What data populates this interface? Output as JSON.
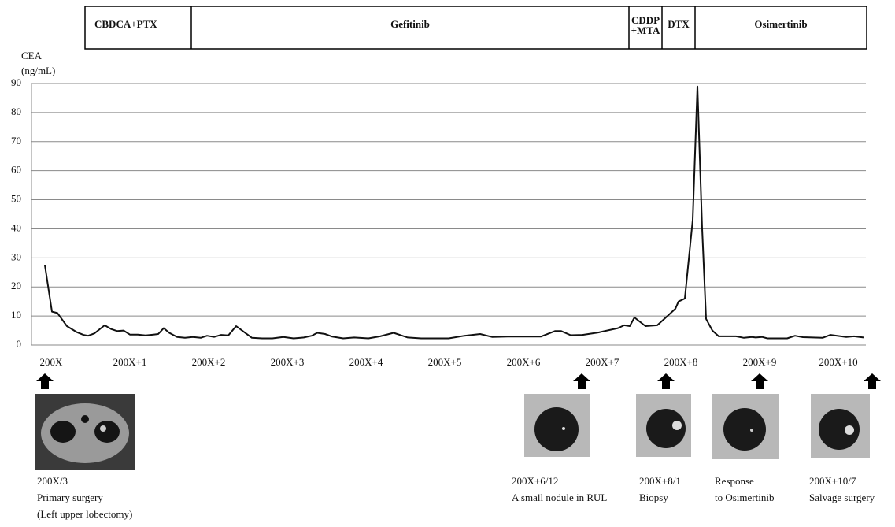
{
  "chart_data": {
    "type": "line",
    "treatments": [
      [
        "CBDCA+PTX"
      ],
      [
        "Gefitinib"
      ],
      [
        "CDDP",
        "+MTA"
      ],
      [
        "DTX"
      ],
      [
        "Osimertinib"
      ]
    ],
    "ylabel": [
      "CEA",
      "(ng/mL)"
    ],
    "x": [
      -0.08,
      0.01,
      0.08,
      0.2,
      0.32,
      0.41,
      0.47,
      0.55,
      0.68,
      0.76,
      0.84,
      0.92,
      1.0,
      1.1,
      1.2,
      1.3,
      1.36,
      1.43,
      1.5,
      1.6,
      1.7,
      1.8,
      1.9,
      1.98,
      2.07,
      2.16,
      2.25,
      2.35,
      2.45,
      2.55,
      2.68,
      2.81,
      2.95,
      3.08,
      3.21,
      3.31,
      3.38,
      3.48,
      3.57,
      3.71,
      3.85,
      4.03,
      4.18,
      4.35,
      4.53,
      4.7,
      5.05,
      5.25,
      5.45,
      5.6,
      5.8,
      6.22,
      6.4,
      6.48,
      6.6,
      6.75,
      6.95,
      7.2,
      7.28,
      7.35,
      7.41,
      7.55,
      7.7,
      7.83,
      7.93,
      7.97,
      8.05,
      8.15,
      8.21,
      8.27,
      8.32,
      8.4,
      8.48,
      8.7,
      8.8,
      8.9,
      8.95,
      9.03,
      9.1,
      9.35,
      9.45,
      9.55,
      9.8,
      9.9,
      10.1,
      10.2,
      10.32
    ],
    "values": [
      27.5,
      11.5,
      11,
      6.5,
      4.5,
      3.5,
      3.2,
      4,
      6.8,
      5.5,
      4.8,
      5,
      3.6,
      3.6,
      3.3,
      3.6,
      3.8,
      5.8,
      4.2,
      2.8,
      2.5,
      2.8,
      2.5,
      3.2,
      2.8,
      3.5,
      3.3,
      6.5,
      4.5,
      2.5,
      2.3,
      2.3,
      2.8,
      2.3,
      2.6,
      3.2,
      4.2,
      3.8,
      2.9,
      2.3,
      2.6,
      2.3,
      3,
      4.2,
      2.6,
      2.3,
      2.3,
      3.2,
      3.8,
      2.8,
      2.9,
      2.9,
      4.8,
      4.8,
      3.4,
      3.5,
      4.3,
      5.8,
      6.8,
      6.5,
      9.5,
      6.5,
      6.8,
      10,
      12.5,
      15,
      16,
      43,
      89,
      40,
      9,
      5,
      3,
      3,
      2.5,
      2.8,
      2.6,
      2.8,
      2.3,
      2.3,
      3.2,
      2.7,
      2.5,
      3.5,
      2.8,
      3,
      2.6
    ],
    "color": "#111111",
    "xlim": [
      -0.25,
      10.35
    ],
    "xticks": [
      {
        "value": 0,
        "label": "200X"
      },
      {
        "value": 1,
        "label": "200X+1"
      },
      {
        "value": 2,
        "label": "200X+2"
      },
      {
        "value": 3,
        "label": "200X+3"
      },
      {
        "value": 4,
        "label": "200X+4"
      },
      {
        "value": 5,
        "label": "200X+5"
      },
      {
        "value": 6,
        "label": "200X+6"
      },
      {
        "value": 7,
        "label": "200X+7"
      },
      {
        "value": 8,
        "label": "200X+8"
      },
      {
        "value": 9,
        "label": "200X+9"
      },
      {
        "value": 10,
        "label": "200X+10"
      }
    ],
    "ylim": [
      0,
      90
    ],
    "yticks": [
      0,
      10,
      20,
      30,
      40,
      50,
      60,
      70,
      80,
      90
    ],
    "grid": true,
    "annotations": [
      [
        "200X/3",
        "Primary surgery",
        "(Left upper lobectomy)"
      ],
      [
        "200X+6/12",
        "A small nodule in RUL"
      ],
      [
        "200X+8/1",
        "Biopsy"
      ],
      [
        " Response",
        "to Osimertinib"
      ],
      [
        "200X+10/7",
        "Salvage surgery"
      ]
    ]
  }
}
